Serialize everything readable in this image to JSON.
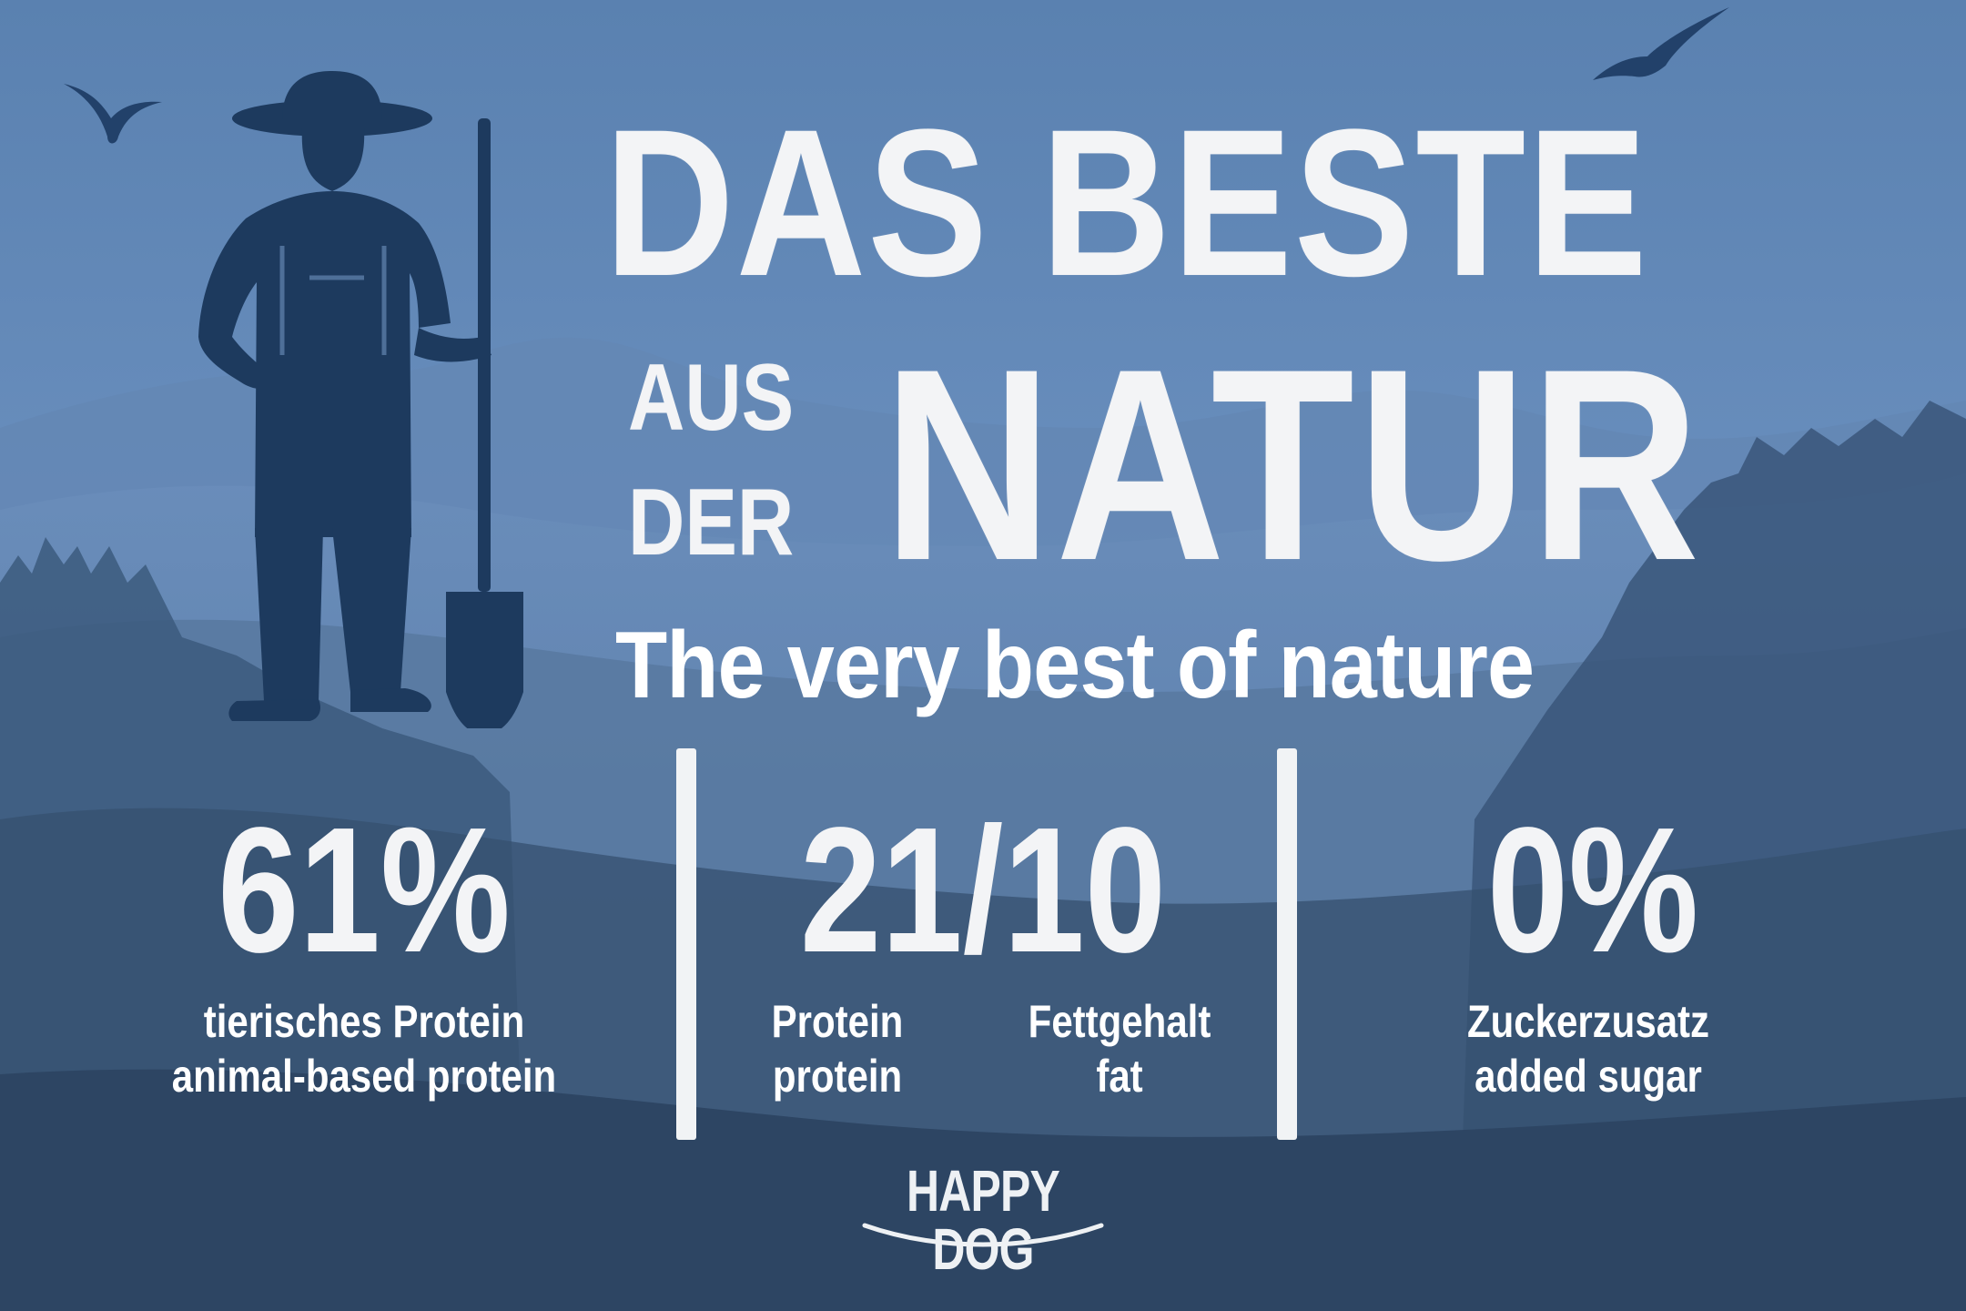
{
  "headline": {
    "line1": "DAS BESTE",
    "line2a": "AUS",
    "line2b": "DER",
    "line3": "NATUR"
  },
  "tagline": "The very best of nature",
  "stats": [
    {
      "value": "61%",
      "caption_de": "tierisches Protein",
      "caption_en": "animal-based protein"
    },
    {
      "value": "21/10",
      "parts": [
        {
          "caption_de": "Protein",
          "caption_en": "protein"
        },
        {
          "caption_de": "Fettgehalt",
          "caption_en": "fat"
        }
      ]
    },
    {
      "value": "0%",
      "caption_de": "Zuckerzusatz",
      "caption_en": "added sugar"
    }
  ],
  "logo": {
    "text": "HAPPY DOG"
  },
  "colors": {
    "sky_top": "#5b82b1",
    "sky_bottom": "#7d9ec8",
    "mountain": "#4f719c",
    "forest_dark": "#2e4763",
    "farmer": "#1d3a5e",
    "text": "#f3f4f6"
  },
  "icons": [
    "farmer-illustration",
    "shovel-icon",
    "bird-icon",
    "mountain-silhouette",
    "forest-silhouette"
  ]
}
